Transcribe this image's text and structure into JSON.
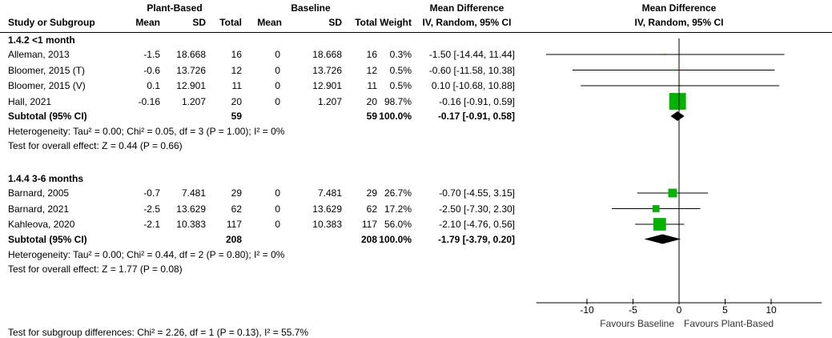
{
  "header": {
    "group1": "Plant-Based",
    "group2": "Baseline",
    "md_title": "Mean Difference",
    "md_sub": "IV, Random, 95% CI",
    "plot_title": "Mean Difference",
    "plot_sub": "IV, Random, 95% CI",
    "columns": [
      "Study or Subgroup",
      "Mean",
      "SD",
      "Total",
      "Mean",
      "SD",
      "Total",
      "Weight"
    ]
  },
  "chart_data": {
    "type": "forest",
    "xlim": [
      -15,
      15
    ],
    "ticks": [
      "-10",
      "-5",
      "0",
      "5",
      "10"
    ],
    "tick_values": [
      -10,
      -5,
      0,
      5,
      10
    ],
    "xlabel_left": "Favours Baseline",
    "xlabel_right": "Favours Plant-Based",
    "colors": {
      "square": "#00b400",
      "diamond": "#000000"
    },
    "subgroups": [
      {
        "title": "1.4.2 <1 month",
        "studies": [
          {
            "name": "Alleman, 2013",
            "m1": "-1.5",
            "sd1": "18.668",
            "n1": "16",
            "m2": "0",
            "sd2": "18.668",
            "n2": "16",
            "weight": "0.3%",
            "ci": "-1.50 [-14.44, 11.44]",
            "est": -1.5,
            "lo": -14.44,
            "hi": 11.44,
            "w": 0.3
          },
          {
            "name": "Bloomer, 2015 (T)",
            "m1": "-0.6",
            "sd1": "13.726",
            "n1": "12",
            "m2": "0",
            "sd2": "13.726",
            "n2": "12",
            "weight": "0.5%",
            "ci": "-0.60 [-11.58, 10.38]",
            "est": -0.6,
            "lo": -11.58,
            "hi": 10.38,
            "w": 0.5
          },
          {
            "name": "Bloomer, 2015 (V)",
            "m1": "0.1",
            "sd1": "12.901",
            "n1": "11",
            "m2": "0",
            "sd2": "12.901",
            "n2": "11",
            "weight": "0.5%",
            "ci": "0.10 [-10.68, 10.88]",
            "est": 0.1,
            "lo": -10.68,
            "hi": 10.88,
            "w": 0.5
          },
          {
            "name": "Hall, 2021",
            "m1": "-0.16",
            "sd1": "1.207",
            "n1": "20",
            "m2": "0",
            "sd2": "1.207",
            "n2": "20",
            "weight": "98.7%",
            "ci": "-0.16 [-0.91, 0.59]",
            "est": -0.16,
            "lo": -0.91,
            "hi": 0.59,
            "w": 98.7
          }
        ],
        "subtotal": {
          "label": "Subtotal (95% CI)",
          "n1": "59",
          "n2": "59",
          "weight": "100.0%",
          "ci": "-0.17 [-0.91, 0.58]",
          "est": -0.17,
          "lo": -0.91,
          "hi": 0.58
        },
        "heterogeneity": "Heterogeneity: Tau² = 0.00; Chi² = 0.05, df = 3 (P = 1.00); I² = 0%",
        "overall": "Test for overall effect: Z = 0.44 (P = 0.66)"
      },
      {
        "title": "1.4.4 3-6 months",
        "studies": [
          {
            "name": "Barnard, 2005",
            "m1": "-0.7",
            "sd1": "7.481",
            "n1": "29",
            "m2": "0",
            "sd2": "7.481",
            "n2": "29",
            "weight": "26.7%",
            "ci": "-0.70 [-4.55, 3.15]",
            "est": -0.7,
            "lo": -4.55,
            "hi": 3.15,
            "w": 26.7
          },
          {
            "name": "Barnard, 2021",
            "m1": "-2.5",
            "sd1": "13.629",
            "n1": "62",
            "m2": "0",
            "sd2": "13.629",
            "n2": "62",
            "weight": "17.2%",
            "ci": "-2.50 [-7.30, 2.30]",
            "est": -2.5,
            "lo": -7.3,
            "hi": 2.3,
            "w": 17.2
          },
          {
            "name": "Kahleova, 2020",
            "m1": "-2.1",
            "sd1": "10.383",
            "n1": "117",
            "m2": "0",
            "sd2": "10.383",
            "n2": "117",
            "weight": "56.0%",
            "ci": "-2.10 [-4.76, 0.56]",
            "est": -2.1,
            "lo": -4.76,
            "hi": 0.56,
            "w": 56.0
          }
        ],
        "subtotal": {
          "label": "Subtotal (95% CI)",
          "n1": "208",
          "n2": "208",
          "weight": "100.0%",
          "ci": "-1.79 [-3.79, 0.20]",
          "est": -1.79,
          "lo": -3.79,
          "hi": 0.2
        },
        "heterogeneity": "Heterogeneity: Tau² = 0.00; Chi² = 0.44, df = 2 (P = 0.80); I² = 0%",
        "overall": "Test for overall effect: Z = 1.77 (P = 0.08)"
      }
    ],
    "subgroup_test": "Test for subgroup differences: Chi² = 2.26, df = 1 (P = 0.13), I² = 55.7%"
  }
}
